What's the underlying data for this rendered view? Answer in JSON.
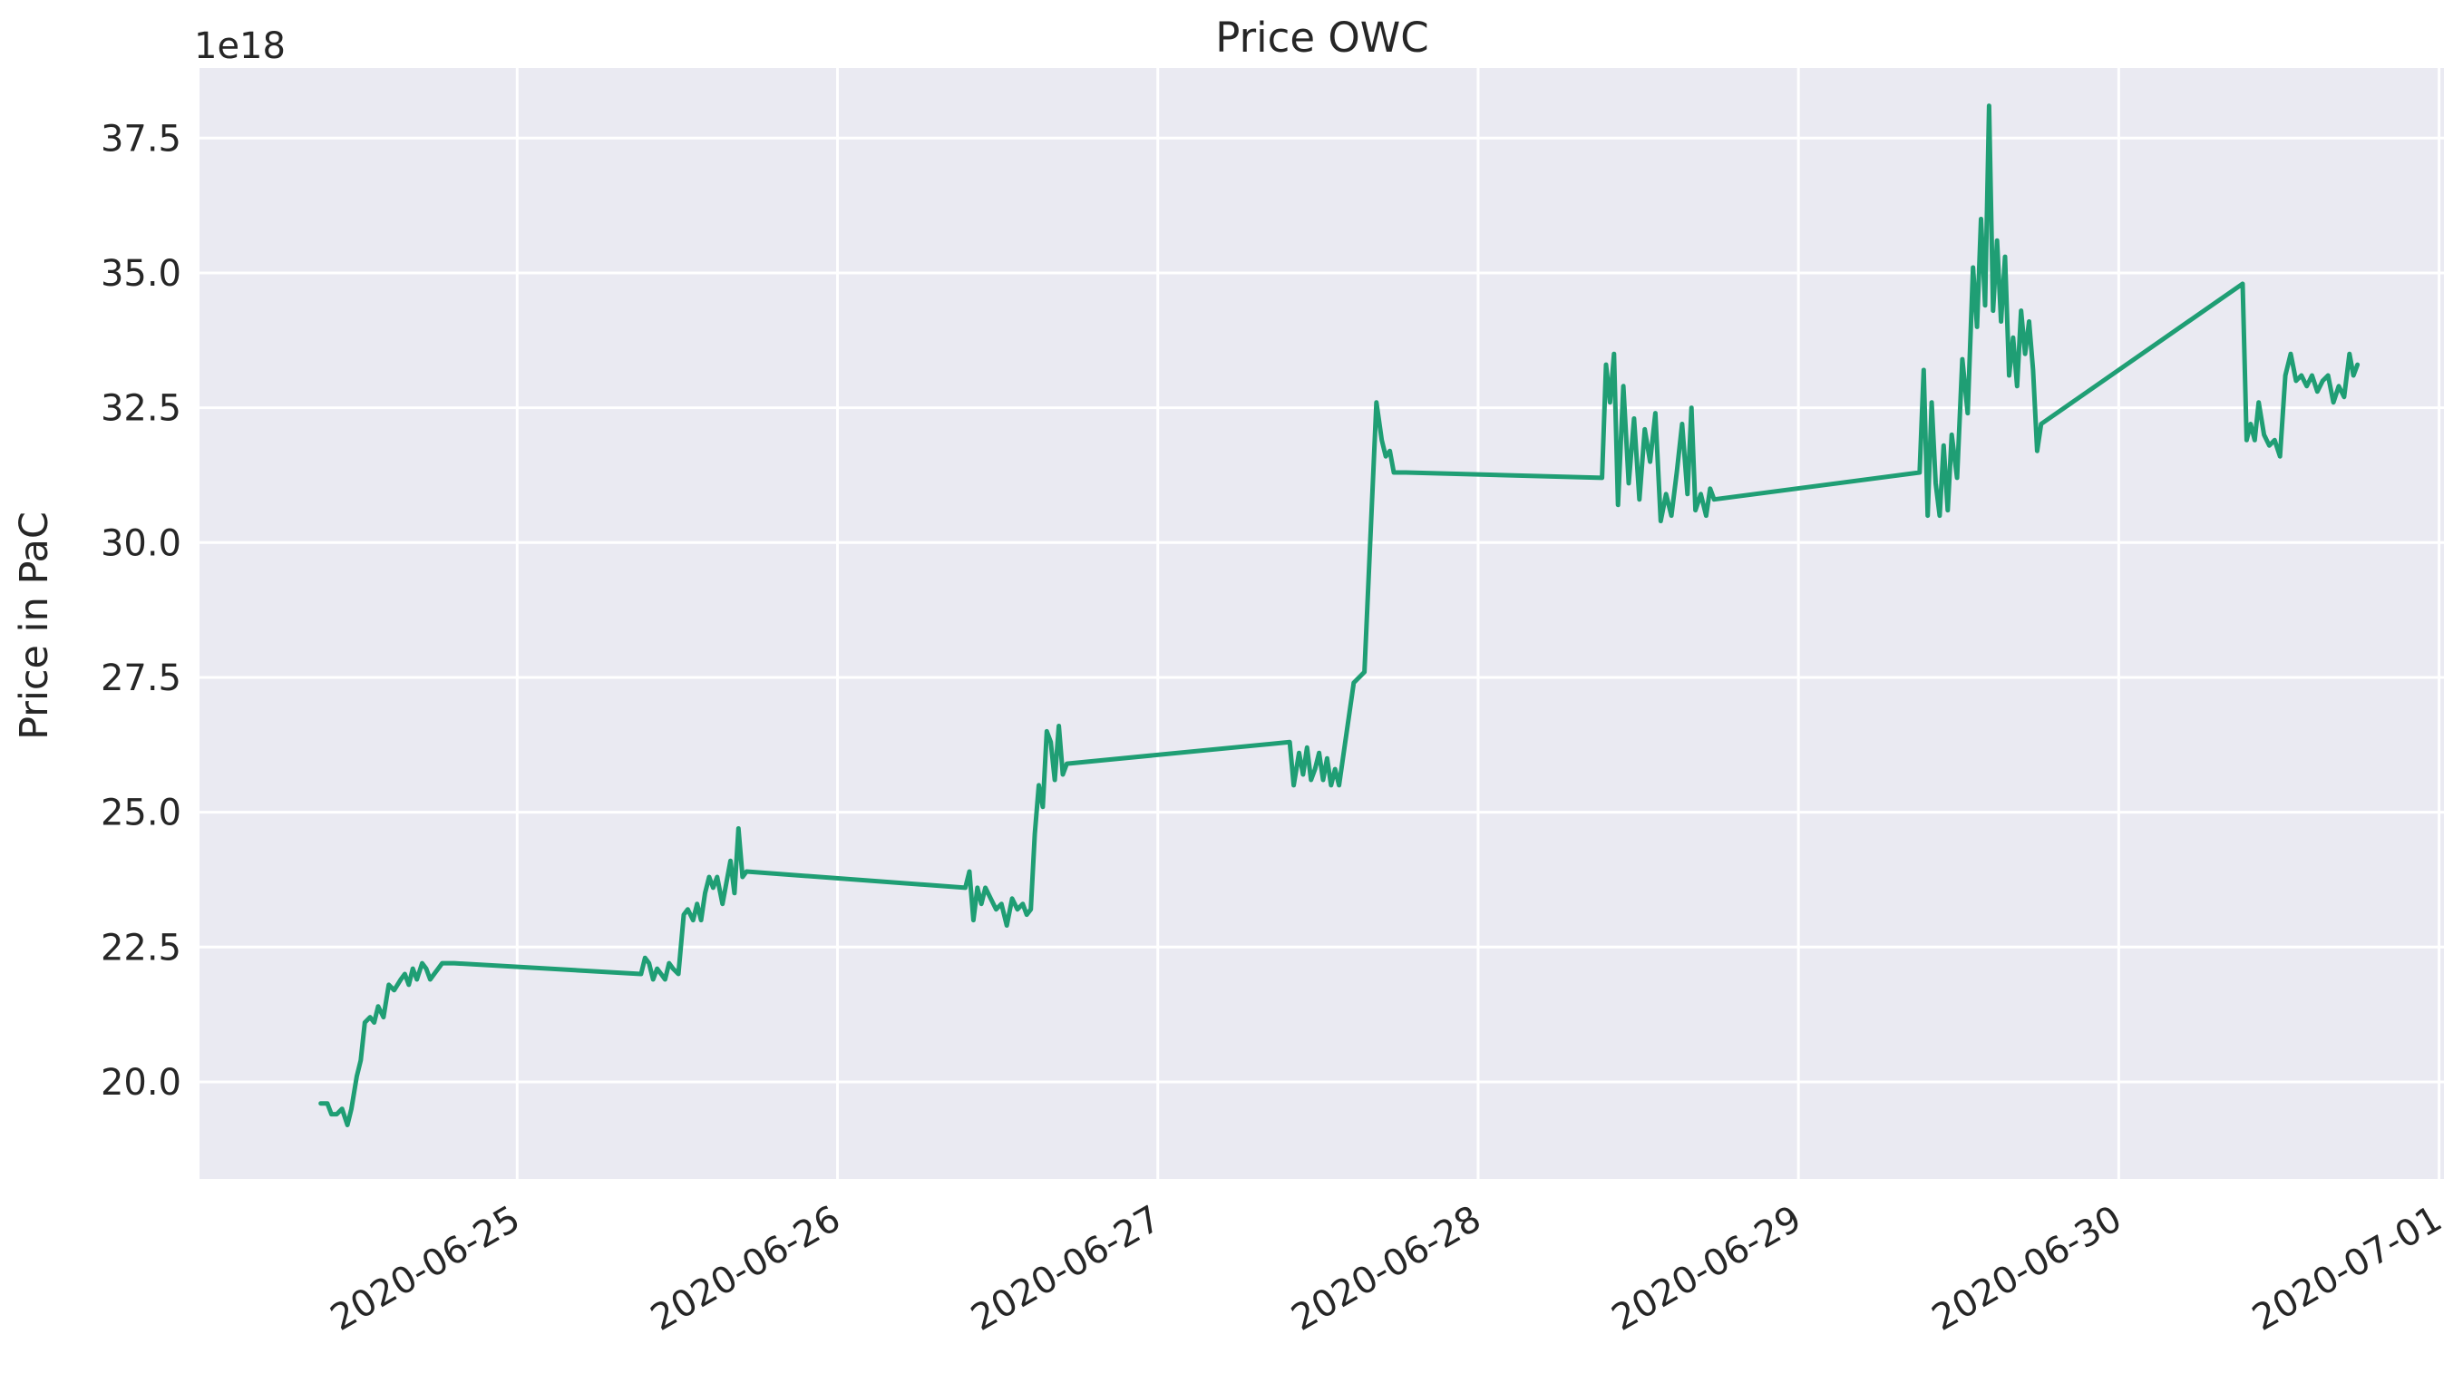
{
  "chart_data": {
    "type": "line",
    "title": "Price OWC",
    "xlabel": "",
    "ylabel": "Price in PaC",
    "y_offset_label": "1e18",
    "ylim": [
      18.2,
      38.8
    ],
    "xlim": [
      "2020-06-24T00:12",
      "2020-07-01T00:22"
    ],
    "x_ticks": [
      "2020-06-25",
      "2020-06-26",
      "2020-06-27",
      "2020-06-28",
      "2020-06-29",
      "2020-06-30",
      "2020-07-01"
    ],
    "y_ticks": [
      "20.0",
      "22.5",
      "25.0",
      "27.5",
      "30.0",
      "32.5",
      "35.0",
      "37.5"
    ],
    "y_tick_values": [
      20.0,
      22.5,
      25.0,
      27.5,
      30.0,
      32.5,
      35.0,
      37.5
    ],
    "grid": true,
    "background": "#eaeaf2",
    "grid_color": "#ffffff",
    "line_color": "#1f9e74",
    "series": [
      {
        "name": "",
        "x": [
          "2020-06-24T09:17",
          "2020-06-24T09:47",
          "2020-06-24T10:05",
          "2020-06-24T10:29",
          "2020-06-24T10:53",
          "2020-06-24T11:17",
          "2020-06-24T11:35",
          "2020-06-24T11:59",
          "2020-06-24T12:17",
          "2020-06-24T12:35",
          "2020-06-24T12:59",
          "2020-06-24T13:17",
          "2020-06-24T13:35",
          "2020-06-24T13:59",
          "2020-06-24T14:23",
          "2020-06-24T14:47",
          "2020-06-24T15:17",
          "2020-06-24T15:35",
          "2020-06-24T15:53",
          "2020-06-24T16:11",
          "2020-06-24T16:29",
          "2020-06-24T16:53",
          "2020-06-24T17:11",
          "2020-06-24T17:29",
          "2020-06-24T17:47",
          "2020-06-24T18:05",
          "2020-06-24T18:23",
          "2020-06-24T18:41",
          "2020-06-24T18:59",
          "2020-06-24T19:17",
          "2020-06-25T09:17",
          "2020-06-25T09:35",
          "2020-06-25T09:53",
          "2020-06-25T10:11",
          "2020-06-25T10:29",
          "2020-06-25T10:47",
          "2020-06-25T11:05",
          "2020-06-25T11:23",
          "2020-06-25T11:41",
          "2020-06-25T12:05",
          "2020-06-25T12:29",
          "2020-06-25T12:47",
          "2020-06-25T13:11",
          "2020-06-25T13:29",
          "2020-06-25T13:47",
          "2020-06-25T14:05",
          "2020-06-25T14:23",
          "2020-06-25T14:41",
          "2020-06-25T14:59",
          "2020-06-25T15:23",
          "2020-06-25T15:41",
          "2020-06-25T15:59",
          "2020-06-25T16:17",
          "2020-06-25T16:35",
          "2020-06-25T16:53",
          "2020-06-25T17:11",
          "2020-06-26T09:35",
          "2020-06-26T09:53",
          "2020-06-26T10:11",
          "2020-06-26T10:29",
          "2020-06-26T10:47",
          "2020-06-26T11:05",
          "2020-06-26T11:29",
          "2020-06-26T11:53",
          "2020-06-26T12:17",
          "2020-06-26T12:41",
          "2020-06-26T13:05",
          "2020-06-26T13:29",
          "2020-06-26T13:53",
          "2020-06-26T14:11",
          "2020-06-26T14:29",
          "2020-06-26T14:47",
          "2020-06-26T15:05",
          "2020-06-26T15:23",
          "2020-06-26T15:41",
          "2020-06-26T15:59",
          "2020-06-26T16:17",
          "2020-06-26T16:35",
          "2020-06-26T16:53",
          "2020-06-26T17:11",
          "2020-06-27T09:53",
          "2020-06-27T10:11",
          "2020-06-27T10:35",
          "2020-06-27T10:53",
          "2020-06-27T11:11",
          "2020-06-27T11:29",
          "2020-06-27T11:47",
          "2020-06-27T12:05",
          "2020-06-27T12:23",
          "2020-06-27T12:41",
          "2020-06-27T12:59",
          "2020-06-27T13:17",
          "2020-06-27T13:35",
          "2020-06-27T14:41",
          "2020-06-27T15:29",
          "2020-06-27T16:23",
          "2020-06-27T16:47",
          "2020-06-27T17:05",
          "2020-06-27T17:23",
          "2020-06-27T17:41",
          "2020-06-27T18:05",
          "2020-06-27T18:23",
          "2020-06-27T18:35",
          "2020-06-28T09:17",
          "2020-06-28T09:35",
          "2020-06-28T09:53",
          "2020-06-28T10:11",
          "2020-06-28T10:29",
          "2020-06-28T10:53",
          "2020-06-28T11:17",
          "2020-06-28T11:41",
          "2020-06-28T12:05",
          "2020-06-28T12:29",
          "2020-06-28T12:53",
          "2020-06-28T13:17",
          "2020-06-28T13:41",
          "2020-06-28T14:05",
          "2020-06-28T14:29",
          "2020-06-28T14:53",
          "2020-06-28T15:17",
          "2020-06-28T15:41",
          "2020-06-28T15:59",
          "2020-06-28T16:17",
          "2020-06-28T16:41",
          "2020-06-28T17:05",
          "2020-06-28T17:23",
          "2020-06-28T17:41",
          "2020-06-29T09:05",
          "2020-06-29T09:23",
          "2020-06-29T09:41",
          "2020-06-29T09:59",
          "2020-06-29T10:17",
          "2020-06-29T10:35",
          "2020-06-29T10:53",
          "2020-06-29T11:11",
          "2020-06-29T11:29",
          "2020-06-29T11:53",
          "2020-06-29T12:17",
          "2020-06-29T12:41",
          "2020-06-29T13:05",
          "2020-06-29T13:23",
          "2020-06-29T13:41",
          "2020-06-29T13:59",
          "2020-06-29T14:17",
          "2020-06-29T14:35",
          "2020-06-29T14:53",
          "2020-06-29T15:11",
          "2020-06-29T15:29",
          "2020-06-29T15:47",
          "2020-06-29T16:05",
          "2020-06-29T16:23",
          "2020-06-29T16:41",
          "2020-06-29T16:59",
          "2020-06-29T17:17",
          "2020-06-29T17:35",
          "2020-06-29T17:53",
          "2020-06-29T18:11",
          "2020-06-30T09:17",
          "2020-06-30T09:35",
          "2020-06-30T09:53",
          "2020-06-30T10:11",
          "2020-06-30T10:29",
          "2020-06-30T10:53",
          "2020-06-30T11:17",
          "2020-06-30T11:41",
          "2020-06-30T12:05",
          "2020-06-30T12:29",
          "2020-06-30T12:53",
          "2020-06-30T13:17",
          "2020-06-30T13:41",
          "2020-06-30T14:05",
          "2020-06-30T14:29",
          "2020-06-30T14:53",
          "2020-06-30T15:17",
          "2020-06-30T15:41",
          "2020-06-30T16:05",
          "2020-06-30T16:29",
          "2020-06-30T16:53",
          "2020-06-30T17:17",
          "2020-06-30T17:35",
          "2020-06-30T17:53"
        ],
        "values": [
          19.6,
          19.6,
          19.4,
          19.4,
          19.5,
          19.2,
          19.5,
          20.1,
          20.4,
          21.1,
          21.2,
          21.1,
          21.4,
          21.2,
          21.8,
          21.7,
          21.9,
          22.0,
          21.8,
          22.1,
          21.9,
          22.2,
          22.1,
          21.9,
          22.0,
          22.1,
          22.2,
          22.2,
          22.2,
          22.2,
          22.0,
          22.3,
          22.2,
          21.9,
          22.1,
          22.0,
          21.9,
          22.2,
          22.1,
          22.0,
          23.1,
          23.2,
          23.0,
          23.3,
          23.0,
          23.5,
          23.8,
          23.6,
          23.8,
          23.3,
          23.7,
          24.1,
          23.5,
          24.7,
          23.8,
          23.9,
          23.6,
          23.9,
          23.0,
          23.6,
          23.3,
          23.6,
          23.4,
          23.2,
          23.3,
          22.9,
          23.4,
          23.2,
          23.3,
          23.1,
          23.2,
          24.6,
          25.5,
          25.1,
          26.5,
          26.3,
          25.6,
          26.6,
          25.7,
          25.9,
          26.3,
          25.5,
          26.1,
          25.7,
          26.2,
          25.6,
          25.8,
          26.1,
          25.6,
          26.0,
          25.5,
          25.8,
          25.5,
          27.4,
          27.6,
          32.6,
          31.9,
          31.6,
          31.7,
          31.3,
          31.3,
          31.3,
          31.3,
          31.2,
          33.3,
          32.6,
          33.5,
          30.7,
          32.9,
          31.1,
          32.3,
          30.8,
          32.1,
          31.5,
          32.4,
          30.4,
          30.9,
          30.5,
          31.3,
          32.2,
          30.9,
          32.5,
          30.6,
          30.9,
          30.5,
          31.0,
          30.8,
          31.3,
          33.2,
          30.5,
          32.6,
          31.1,
          30.5,
          31.8,
          30.6,
          32.0,
          31.2,
          33.4,
          32.4,
          35.1,
          34.0,
          36.0,
          34.4,
          38.1,
          34.3,
          35.6,
          34.1,
          35.3,
          33.1,
          33.8,
          32.9,
          34.3,
          33.5,
          34.1,
          33.2,
          31.7,
          32.2,
          34.8,
          31.9,
          32.2,
          31.9,
          32.6,
          32.0,
          31.8,
          31.9,
          31.6,
          33.1,
          33.5,
          33.0,
          33.1,
          32.9,
          33.1,
          32.8,
          33.0,
          33.1,
          32.6,
          32.9,
          32.7,
          33.5,
          33.1,
          33.3
        ]
      }
    ]
  }
}
